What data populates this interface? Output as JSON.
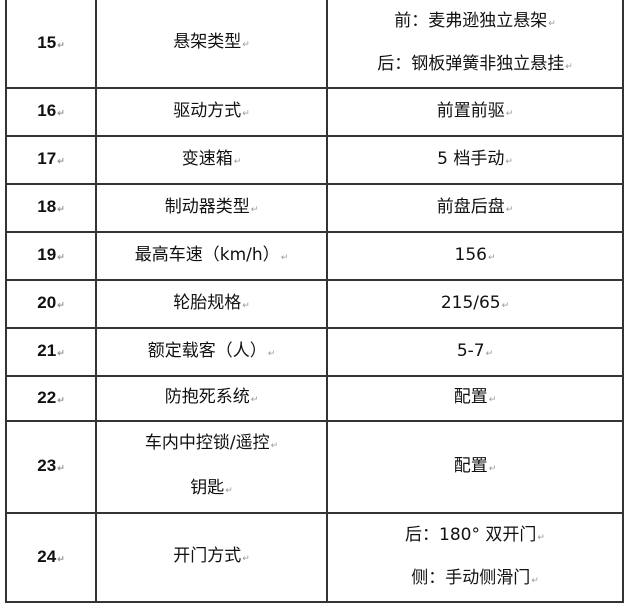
{
  "rows": [
    {
      "no": "15",
      "item": [
        "悬架类型"
      ],
      "value": [
        "前：麦弗逊独立悬架",
        "后：钢板弹簧非独立悬挂"
      ]
    },
    {
      "no": "16",
      "item": [
        "驱动方式"
      ],
      "value": [
        "前置前驱"
      ]
    },
    {
      "no": "17",
      "item": [
        "变速箱"
      ],
      "value": [
        "5 档手动"
      ]
    },
    {
      "no": "18",
      "item": [
        "制动器类型"
      ],
      "value": [
        "前盘后盘"
      ]
    },
    {
      "no": "19",
      "item": [
        "最高车速（km/h）"
      ],
      "value": [
        "156"
      ]
    },
    {
      "no": "20",
      "item": [
        "轮胎规格"
      ],
      "value": [
        "215/65"
      ]
    },
    {
      "no": "21",
      "item": [
        "额定载客（人）"
      ],
      "value": [
        "5-7"
      ]
    },
    {
      "no": "22",
      "item": [
        "防抱死系统"
      ],
      "value": [
        "配置"
      ]
    },
    {
      "no": "23",
      "item": [
        "车内中控锁/遥控",
        "钥匙"
      ],
      "value": [
        "配置"
      ]
    },
    {
      "no": "24",
      "item": [
        "开门方式"
      ],
      "value": [
        "后：180° 双开门",
        "侧：手动侧滑门"
      ]
    }
  ]
}
